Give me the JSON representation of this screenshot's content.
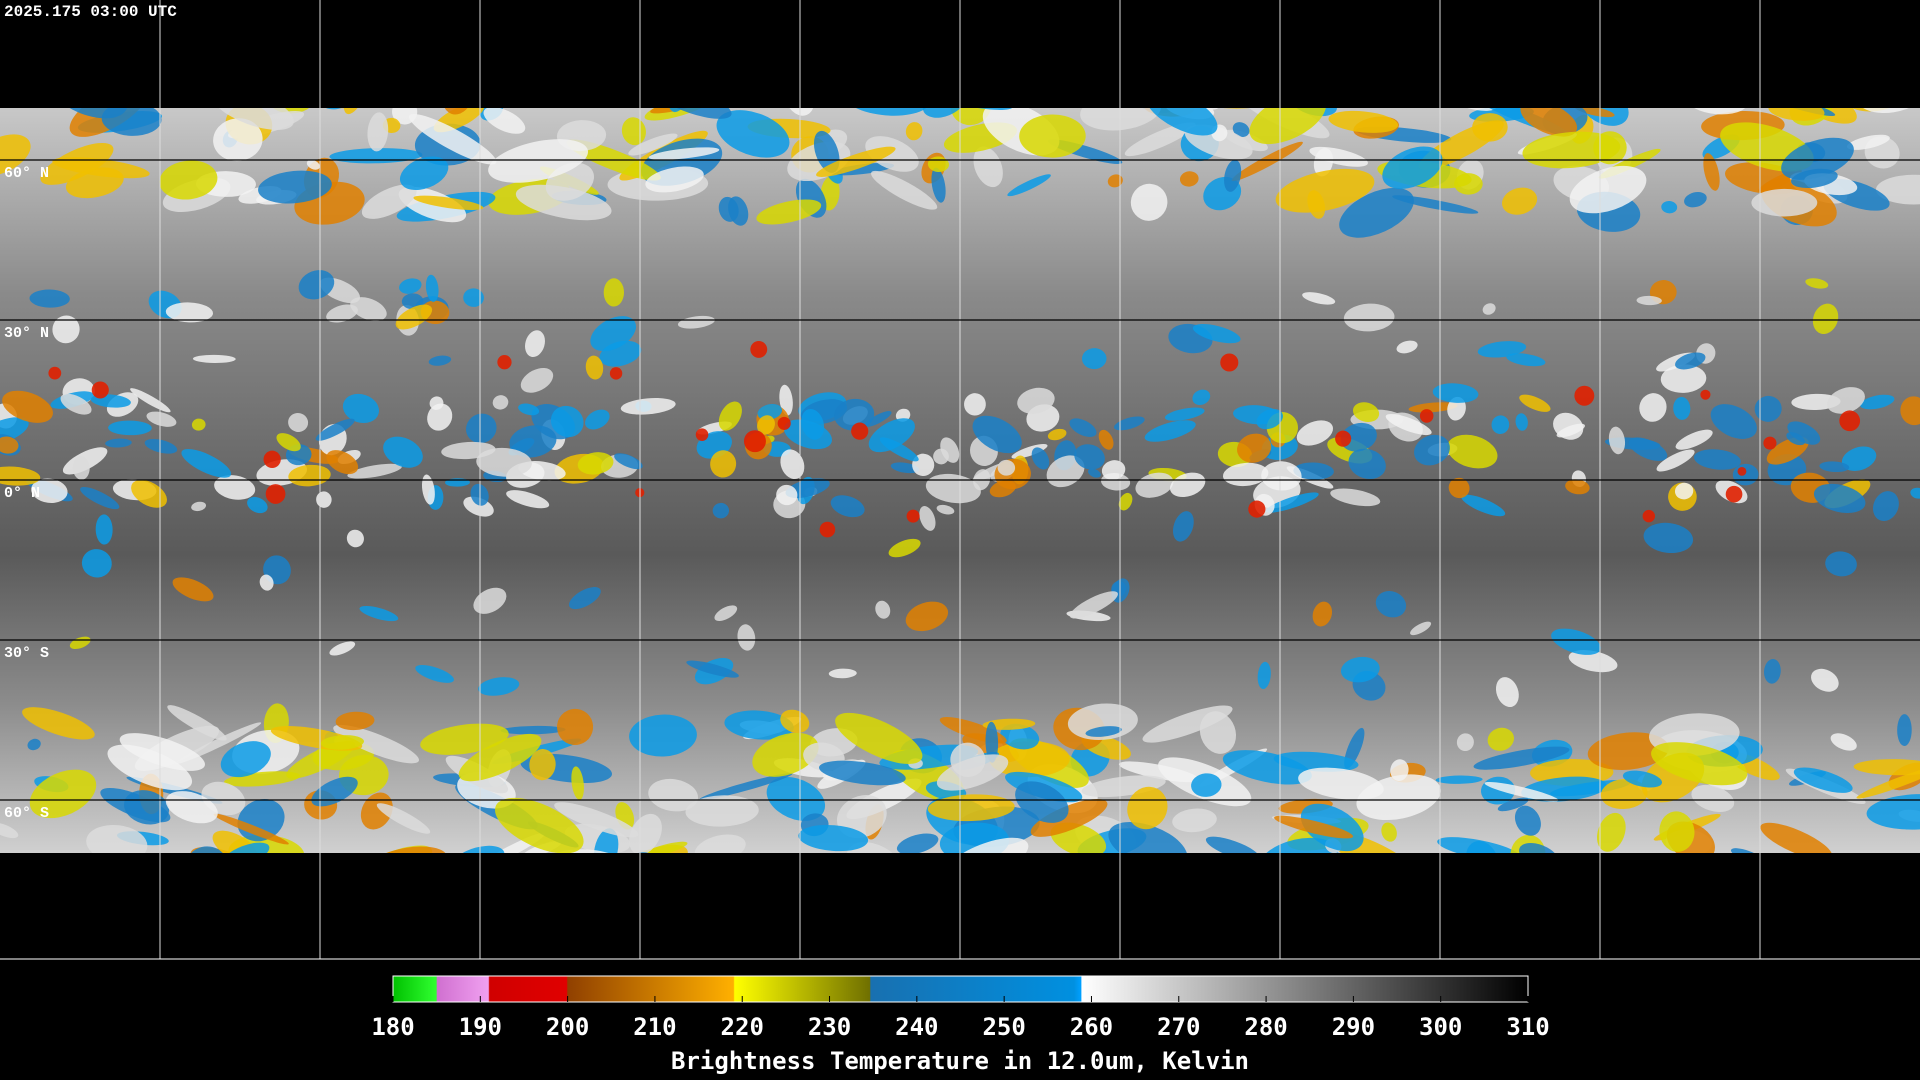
{
  "map": {
    "timestamp": "2025.175 03:00 UTC",
    "lat_lines": [
      {
        "value": 60,
        "label": "60° N"
      },
      {
        "value": 30,
        "label": "30° N"
      },
      {
        "value": 0,
        "label": "0° N"
      },
      {
        "value": -30,
        "label": "30° S"
      },
      {
        "value": -60,
        "label": "60° S"
      }
    ]
  },
  "colorbar": {
    "title": "Brightness Temperature in 12.0um, Kelvin",
    "range": [
      180,
      310
    ],
    "ticks": [
      180,
      190,
      200,
      210,
      220,
      230,
      240,
      250,
      260,
      270,
      280,
      290,
      300,
      310
    ]
  }
}
